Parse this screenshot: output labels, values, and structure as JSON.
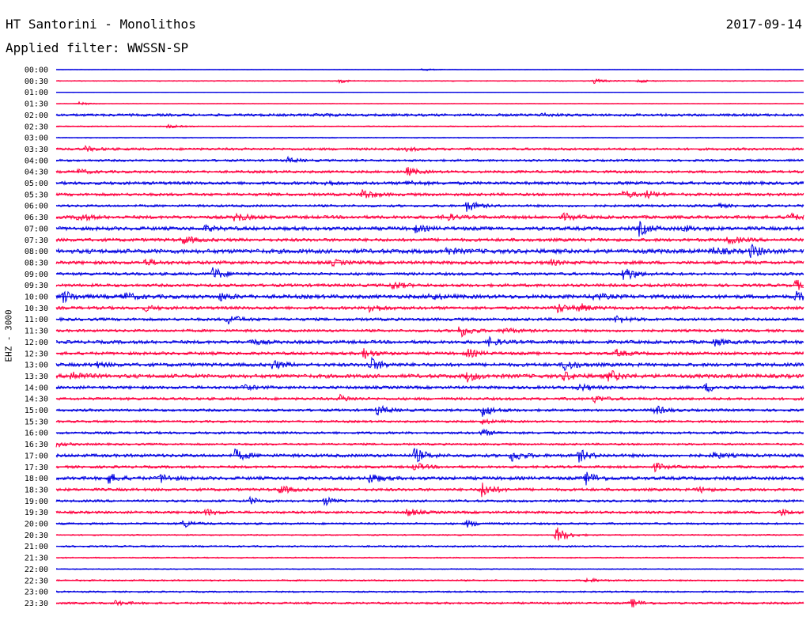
{
  "header": {
    "station": "HT Santorini - Monolithos",
    "date": "2017-09-14",
    "filter": "Applied filter: WWSSN-SP"
  },
  "channel_label": "EHZ - 3000",
  "chart_data": {
    "type": "line",
    "title": "HT Santorini - Monolithos",
    "subtitle": "Applied filter: WWSSN-SP",
    "ylabel": "EHZ - 3000",
    "xlabel": "",
    "colors": [
      "#0000e0",
      "#ff0040"
    ],
    "row_labels": [
      "00:00",
      "00:30",
      "01:00",
      "01:30",
      "02:00",
      "02:30",
      "03:00",
      "03:30",
      "04:00",
      "04:30",
      "05:00",
      "05:30",
      "06:00",
      "06:30",
      "07:00",
      "07:30",
      "08:00",
      "08:30",
      "09:00",
      "09:30",
      "10:00",
      "10:30",
      "11:00",
      "11:30",
      "12:00",
      "12:30",
      "13:00",
      "13:30",
      "14:00",
      "14:30",
      "15:00",
      "15:30",
      "16:00",
      "16:30",
      "17:00",
      "17:30",
      "18:00",
      "18:30",
      "19:00",
      "19:30",
      "20:00",
      "20:30",
      "21:00",
      "21:30",
      "22:00",
      "22:30",
      "23:00",
      "23:30"
    ],
    "noise_level": [
      0.3,
      0.6,
      0.2,
      0.4,
      1.6,
      0.7,
      0.6,
      1.5,
      1.4,
      1.6,
      1.9,
      1.8,
      1.5,
      2.0,
      2.3,
      2.0,
      2.7,
      2.1,
      1.8,
      1.9,
      2.4,
      1.9,
      1.8,
      1.7,
      2.1,
      1.9,
      2.2,
      2.4,
      1.9,
      1.7,
      1.6,
      1.4,
      1.5,
      1.3,
      2.0,
      1.6,
      2.1,
      1.8,
      1.5,
      1.6,
      1.3,
      0.8,
      1.1,
      0.8,
      0.6,
      1.0,
      1.0,
      1.3
    ],
    "events": [
      [
        [
          0.49,
          2
        ]
      ],
      [
        [
          0.38,
          2
        ],
        [
          0.72,
          3
        ],
        [
          0.78,
          2
        ]
      ],
      [],
      [
        [
          0.03,
          2
        ]
      ],
      [
        [
          0.35,
          2
        ],
        [
          0.65,
          2
        ]
      ],
      [
        [
          0.15,
          2
        ]
      ],
      [],
      [
        [
          0.04,
          3
        ],
        [
          0.47,
          2
        ]
      ],
      [
        [
          0.31,
          3
        ]
      ],
      [
        [
          0.03,
          3
        ],
        [
          0.47,
          5
        ]
      ],
      [
        [
          0.36,
          3
        ],
        [
          0.47,
          3
        ]
      ],
      [
        [
          0.41,
          7
        ],
        [
          0.76,
          5
        ],
        [
          0.79,
          4
        ]
      ],
      [
        [
          0.55,
          7
        ],
        [
          0.88,
          3
        ]
      ],
      [
        [
          0.03,
          5
        ],
        [
          0.24,
          6
        ],
        [
          0.52,
          5
        ],
        [
          0.68,
          4
        ],
        [
          0.98,
          5
        ]
      ],
      [
        [
          0.2,
          3
        ],
        [
          0.48,
          4
        ],
        [
          0.78,
          8
        ],
        [
          0.84,
          3
        ]
      ],
      [
        [
          0.17,
          5
        ],
        [
          0.9,
          5
        ]
      ],
      [
        [
          0.52,
          4
        ],
        [
          0.88,
          4
        ],
        [
          0.93,
          7
        ]
      ],
      [
        [
          0.12,
          4
        ],
        [
          0.37,
          3
        ],
        [
          0.66,
          3
        ]
      ],
      [
        [
          0.21,
          8
        ],
        [
          0.76,
          10
        ]
      ],
      [
        [
          0.45,
          5
        ],
        [
          0.99,
          6
        ]
      ],
      [
        [
          0.01,
          7
        ],
        [
          0.09,
          5
        ],
        [
          0.22,
          4
        ],
        [
          0.5,
          4
        ],
        [
          0.72,
          4
        ],
        [
          0.99,
          5
        ]
      ],
      [
        [
          0.12,
          3
        ],
        [
          0.42,
          6
        ],
        [
          0.67,
          6
        ],
        [
          0.7,
          5
        ]
      ],
      [
        [
          0.23,
          6
        ],
        [
          0.75,
          5
        ]
      ],
      [
        [
          0.54,
          8
        ],
        [
          0.6,
          4
        ]
      ],
      [
        [
          0.26,
          3
        ],
        [
          0.58,
          5
        ],
        [
          0.88,
          4
        ]
      ],
      [
        [
          0.41,
          7
        ],
        [
          0.55,
          5
        ],
        [
          0.75,
          4
        ]
      ],
      [
        [
          0.05,
          4
        ],
        [
          0.29,
          5
        ],
        [
          0.42,
          9
        ],
        [
          0.68,
          7
        ]
      ],
      [
        [
          0.02,
          7
        ],
        [
          0.55,
          6
        ],
        [
          0.68,
          5
        ],
        [
          0.74,
          7
        ]
      ],
      [
        [
          0.25,
          3
        ],
        [
          0.7,
          4
        ],
        [
          0.87,
          5
        ]
      ],
      [
        [
          0.38,
          4
        ],
        [
          0.72,
          4
        ]
      ],
      [
        [
          0.43,
          6
        ],
        [
          0.57,
          8
        ],
        [
          0.8,
          6
        ]
      ],
      [
        [
          0.57,
          3
        ]
      ],
      [
        [
          0.57,
          4
        ]
      ],
      [
        [
          0.0,
          3
        ]
      ],
      [
        [
          0.24,
          7
        ],
        [
          0.48,
          9
        ],
        [
          0.61,
          7
        ],
        [
          0.7,
          7
        ],
        [
          0.88,
          4
        ]
      ],
      [
        [
          0.48,
          5
        ],
        [
          0.8,
          5
        ]
      ],
      [
        [
          0.07,
          6
        ],
        [
          0.14,
          5
        ],
        [
          0.42,
          6
        ],
        [
          0.71,
          8
        ]
      ],
      [
        [
          0.3,
          5
        ],
        [
          0.57,
          10
        ],
        [
          0.86,
          3
        ]
      ],
      [
        [
          0.26,
          4
        ],
        [
          0.36,
          5
        ]
      ],
      [
        [
          0.2,
          4
        ],
        [
          0.47,
          5
        ],
        [
          0.97,
          4
        ]
      ],
      [
        [
          0.17,
          5
        ],
        [
          0.55,
          4
        ]
      ],
      [
        [
          0.67,
          11
        ]
      ],
      [],
      [],
      [],
      [
        [
          0.71,
          3
        ]
      ],
      [],
      [
        [
          0.08,
          3
        ],
        [
          0.77,
          5
        ]
      ]
    ]
  }
}
